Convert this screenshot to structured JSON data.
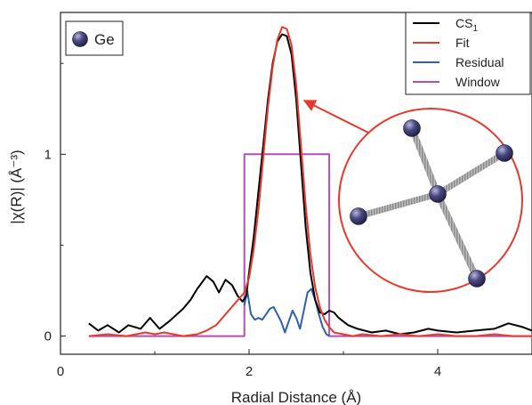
{
  "chart_data": {
    "type": "line",
    "xlabel": "Radial Distance (Å)",
    "ylabel": "|χ(R)| (Å⁻³)",
    "xlim": [
      0,
      5
    ],
    "ylim": [
      -0.1,
      1.78
    ],
    "xticks": [
      0,
      2,
      4
    ],
    "xtick_labels": [
      "0",
      "2",
      "4"
    ],
    "yticks": [
      0,
      1
    ],
    "ytick_labels": [
      "0",
      "1"
    ],
    "grid": false,
    "legend_position": "top-right",
    "atom_legend": {
      "label": "Ge",
      "color": "#3e3d6e"
    },
    "series": [
      {
        "name": "CS1",
        "name_base": "CS",
        "name_sub": "1",
        "color": "#000000",
        "x": [
          0.3,
          0.4,
          0.5,
          0.62,
          0.72,
          0.85,
          0.95,
          1.05,
          1.15,
          1.3,
          1.38,
          1.45,
          1.55,
          1.62,
          1.68,
          1.75,
          1.82,
          1.88,
          1.93,
          1.97,
          2.0,
          2.05,
          2.1,
          2.15,
          2.2,
          2.25,
          2.3,
          2.35,
          2.4,
          2.45,
          2.5,
          2.55,
          2.6,
          2.65,
          2.7,
          2.75,
          2.8,
          2.85,
          2.9,
          2.95,
          3.05,
          3.15,
          3.3,
          3.45,
          3.6,
          3.75,
          3.9,
          4.0,
          4.2,
          4.4,
          4.6,
          4.75,
          4.9,
          5.0
        ],
        "y": [
          0.07,
          0.03,
          0.06,
          0.02,
          0.06,
          0.04,
          0.1,
          0.04,
          0.08,
          0.15,
          0.2,
          0.26,
          0.33,
          0.3,
          0.24,
          0.31,
          0.28,
          0.22,
          0.19,
          0.22,
          0.35,
          0.55,
          0.8,
          1.05,
          1.3,
          1.5,
          1.62,
          1.66,
          1.65,
          1.55,
          1.3,
          0.95,
          0.6,
          0.35,
          0.2,
          0.13,
          0.12,
          0.14,
          0.13,
          0.1,
          0.06,
          0.04,
          0.02,
          0.03,
          0.01,
          0.02,
          0.04,
          0.03,
          0.02,
          0.03,
          0.04,
          0.07,
          0.05,
          0.03
        ]
      },
      {
        "name": "Fit",
        "color": "#e53a2f",
        "x": [
          0.3,
          0.5,
          0.7,
          0.9,
          1.0,
          1.1,
          1.3,
          1.45,
          1.55,
          1.65,
          1.75,
          1.85,
          1.95,
          2.0,
          2.05,
          2.1,
          2.15,
          2.2,
          2.25,
          2.3,
          2.35,
          2.4,
          2.45,
          2.5,
          2.55,
          2.6,
          2.65,
          2.7,
          2.75,
          2.8,
          2.85,
          2.9,
          3.0,
          3.1,
          3.2,
          3.4,
          3.6,
          3.8,
          4.0,
          4.2,
          4.4,
          4.6,
          4.8,
          5.0
        ],
        "y": [
          0.0,
          0.01,
          0.0,
          0.02,
          0.01,
          0.02,
          0.0,
          0.01,
          0.03,
          0.06,
          0.12,
          0.18,
          0.24,
          0.32,
          0.48,
          0.7,
          0.98,
          1.26,
          1.48,
          1.63,
          1.7,
          1.69,
          1.6,
          1.38,
          1.05,
          0.72,
          0.45,
          0.27,
          0.16,
          0.09,
          0.05,
          0.02,
          0.01,
          0.0,
          0.01,
          0.0,
          0.01,
          0.0,
          0.01,
          0.0,
          0.0,
          0.01,
          0.0,
          0.0
        ]
      },
      {
        "name": "Residual",
        "color": "#2e5fb0",
        "x": [
          1.95,
          1.98,
          2.02,
          2.06,
          2.1,
          2.14,
          2.18,
          2.22,
          2.26,
          2.3,
          2.34,
          2.38,
          2.42,
          2.46,
          2.5,
          2.54,
          2.58,
          2.62,
          2.66,
          2.7,
          2.74,
          2.78,
          2.82,
          2.85
        ],
        "y": [
          0.17,
          0.25,
          0.12,
          0.09,
          0.1,
          0.09,
          0.12,
          0.15,
          0.16,
          0.12,
          0.08,
          0.02,
          0.08,
          0.14,
          0.1,
          0.04,
          0.14,
          0.24,
          0.26,
          0.2,
          0.12,
          0.05,
          0.01,
          0.0
        ]
      },
      {
        "name": "Window",
        "color": "#b24fb5",
        "x": [
          0.3,
          1.95,
          1.95,
          2.85,
          2.85,
          5.0
        ],
        "y": [
          0.0,
          0.0,
          1.0,
          1.0,
          0.0,
          0.0
        ]
      }
    ]
  }
}
